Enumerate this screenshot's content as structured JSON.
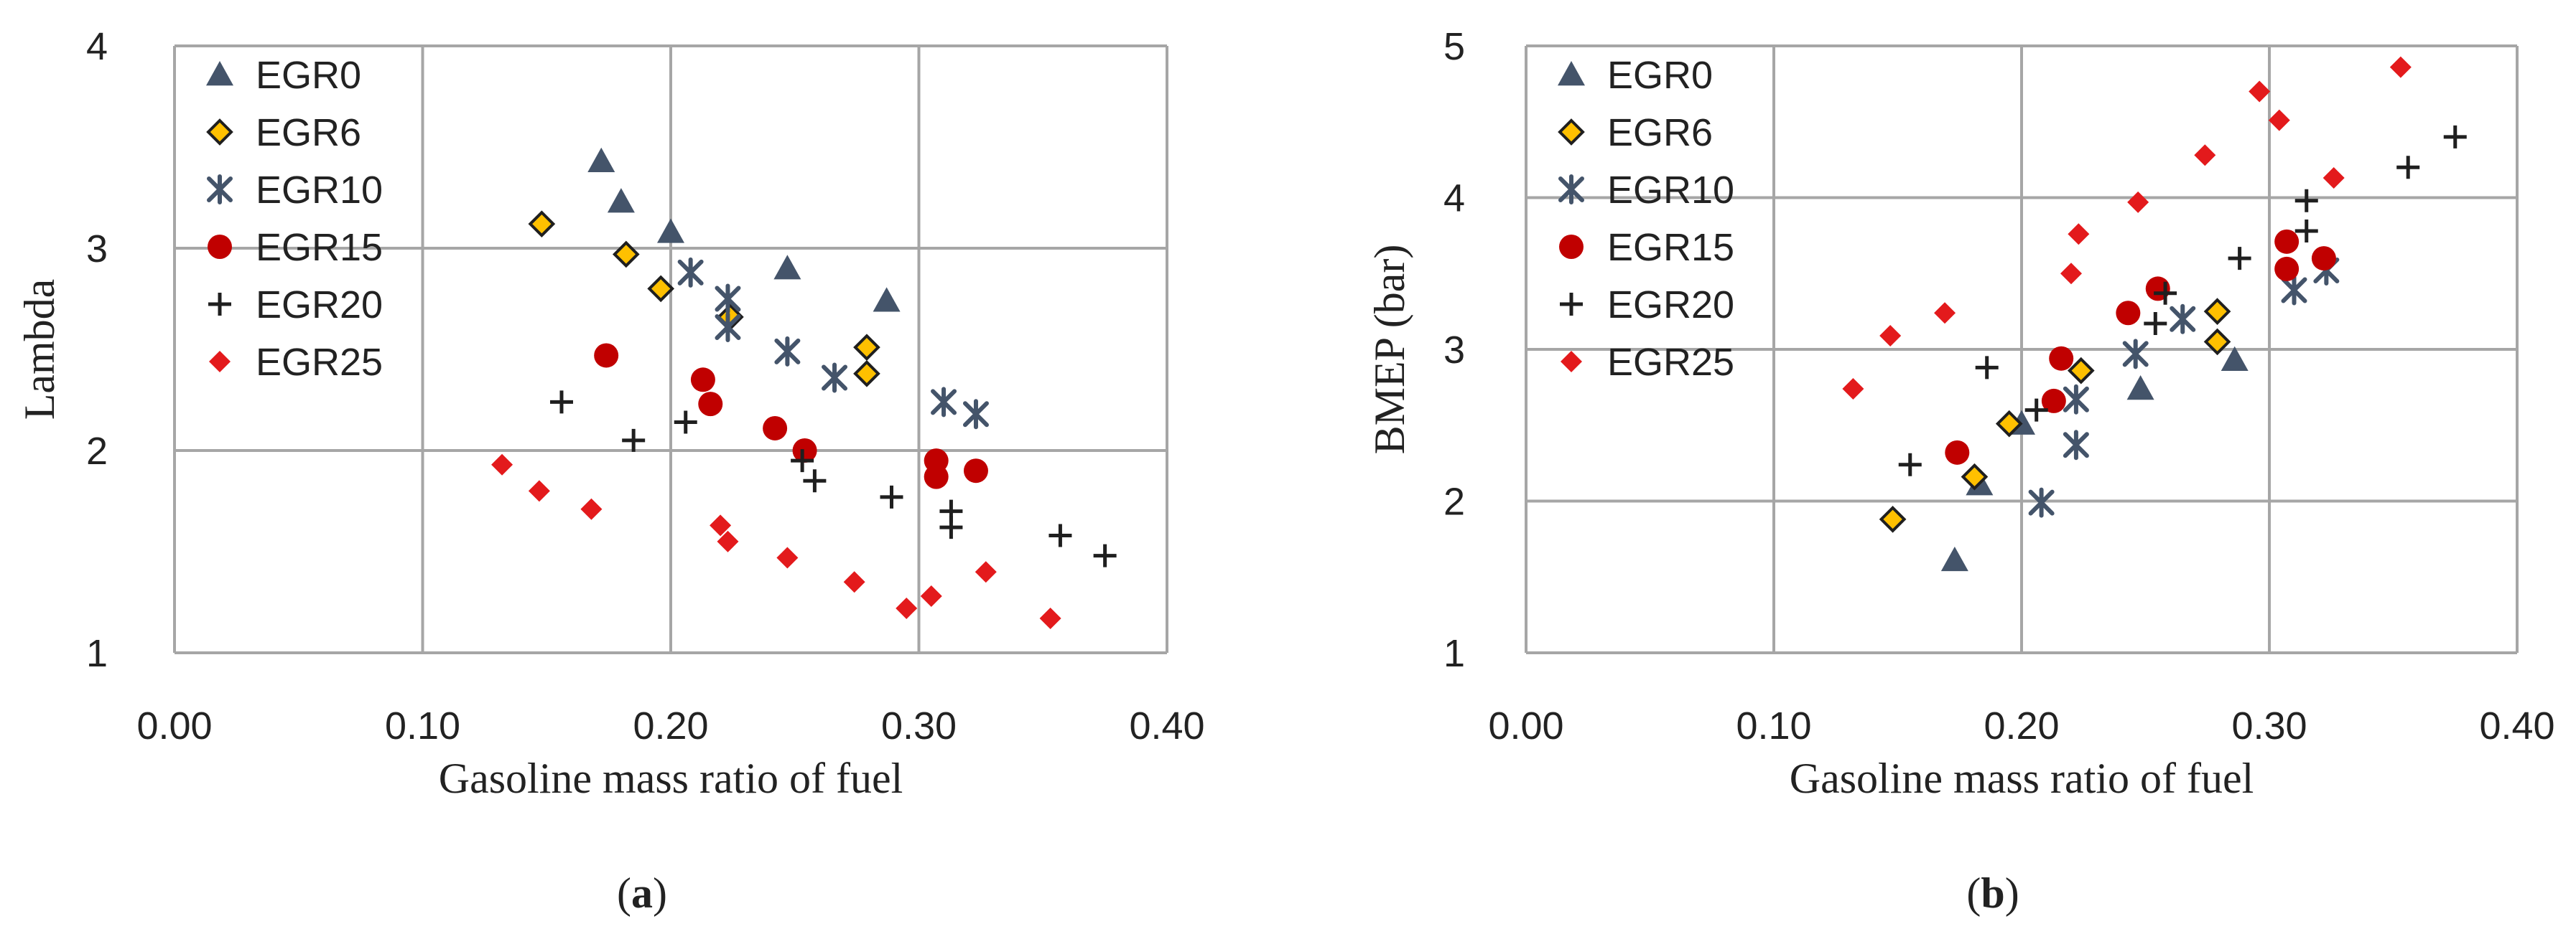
{
  "chart_data": [
    {
      "type": "scatter",
      "panel_label": "a",
      "xlabel": "Gasoline mass ratio of fuel",
      "ylabel": "Lambda",
      "xlim": [
        0,
        0.4
      ],
      "ylim": [
        1,
        4
      ],
      "xticks": [
        "0.00",
        "0.10",
        "0.20",
        "0.30",
        "0.40"
      ],
      "yticks": [
        "1",
        "2",
        "3",
        "4"
      ],
      "grid": true,
      "legend_position": "top-left",
      "series": [
        {
          "name": "EGR0",
          "marker": "triangle",
          "color": "#44546a",
          "points": [
            [
              0.172,
              3.43
            ],
            [
              0.18,
              3.23
            ],
            [
              0.2,
              3.08
            ],
            [
              0.247,
              2.9
            ],
            [
              0.287,
              2.74
            ]
          ]
        },
        {
          "name": "EGR6",
          "marker": "diamond",
          "color": "#ffc000",
          "points": [
            [
              0.148,
              3.12
            ],
            [
              0.182,
              2.97
            ],
            [
              0.196,
              2.8
            ],
            [
              0.224,
              2.66
            ],
            [
              0.279,
              2.51
            ],
            [
              0.279,
              2.38
            ]
          ]
        },
        {
          "name": "EGR10",
          "marker": "asterisk",
          "color": "#44546a",
          "points": [
            [
              0.208,
              2.88
            ],
            [
              0.223,
              2.75
            ],
            [
              0.223,
              2.61
            ],
            [
              0.247,
              2.49
            ],
            [
              0.266,
              2.36
            ],
            [
              0.31,
              2.24
            ],
            [
              0.323,
              2.18
            ]
          ]
        },
        {
          "name": "EGR15",
          "marker": "circle",
          "color": "#c00000",
          "points": [
            [
              0.174,
              2.47
            ],
            [
              0.213,
              2.35
            ],
            [
              0.216,
              2.23
            ],
            [
              0.242,
              2.11
            ],
            [
              0.254,
              2.0
            ],
            [
              0.307,
              1.95
            ],
            [
              0.307,
              1.87
            ],
            [
              0.323,
              1.9
            ]
          ]
        },
        {
          "name": "EGR20",
          "marker": "plus",
          "color": "#1f1f1f",
          "points": [
            [
              0.156,
              2.24
            ],
            [
              0.185,
              2.05
            ],
            [
              0.206,
              2.14
            ],
            [
              0.253,
              1.95
            ],
            [
              0.258,
              1.85
            ],
            [
              0.289,
              1.77
            ],
            [
              0.313,
              1.7
            ],
            [
              0.313,
              1.62
            ],
            [
              0.357,
              1.58
            ],
            [
              0.375,
              1.48
            ]
          ]
        },
        {
          "name": "EGR25",
          "marker": "diamond",
          "color": "#e31a1c",
          "points": [
            [
              0.132,
              1.93
            ],
            [
              0.147,
              1.8
            ],
            [
              0.168,
              1.71
            ],
            [
              0.22,
              1.63
            ],
            [
              0.223,
              1.55
            ],
            [
              0.247,
              1.47
            ],
            [
              0.274,
              1.35
            ],
            [
              0.295,
              1.22
            ],
            [
              0.305,
              1.28
            ],
            [
              0.327,
              1.4
            ],
            [
              0.353,
              1.17
            ]
          ]
        }
      ]
    },
    {
      "type": "scatter",
      "panel_label": "b",
      "xlabel": "Gasoline mass ratio of fuel",
      "ylabel": "BMEP (bar)",
      "xlim": [
        0,
        0.4
      ],
      "ylim": [
        1,
        5
      ],
      "xticks": [
        "0.00",
        "0.10",
        "0.20",
        "0.30",
        "0.40"
      ],
      "yticks": [
        "1",
        "2",
        "3",
        "4",
        "5"
      ],
      "grid": true,
      "legend_position": "top-left",
      "series": [
        {
          "name": "EGR0",
          "marker": "triangle",
          "color": "#44546a",
          "points": [
            [
              0.173,
              1.61
            ],
            [
              0.183,
              2.11
            ],
            [
              0.2,
              2.51
            ],
            [
              0.248,
              2.74
            ],
            [
              0.286,
              2.93
            ]
          ]
        },
        {
          "name": "EGR6",
          "marker": "diamond",
          "color": "#ffc000",
          "points": [
            [
              0.148,
              1.88
            ],
            [
              0.181,
              2.16
            ],
            [
              0.195,
              2.51
            ],
            [
              0.224,
              2.86
            ],
            [
              0.279,
              3.05
            ],
            [
              0.279,
              3.25
            ]
          ]
        },
        {
          "name": "EGR10",
          "marker": "asterisk",
          "color": "#44546a",
          "points": [
            [
              0.208,
              1.99
            ],
            [
              0.222,
              2.37
            ],
            [
              0.222,
              2.67
            ],
            [
              0.246,
              2.97
            ],
            [
              0.265,
              3.2
            ],
            [
              0.31,
              3.39
            ],
            [
              0.323,
              3.52
            ]
          ]
        },
        {
          "name": "EGR15",
          "marker": "circle",
          "color": "#c00000",
          "points": [
            [
              0.174,
              2.32
            ],
            [
              0.213,
              2.66
            ],
            [
              0.216,
              2.94
            ],
            [
              0.243,
              3.24
            ],
            [
              0.255,
              3.4
            ],
            [
              0.307,
              3.53
            ],
            [
              0.307,
              3.71
            ],
            [
              0.322,
              3.6
            ]
          ]
        },
        {
          "name": "EGR20",
          "marker": "plus",
          "color": "#1f1f1f",
          "points": [
            [
              0.155,
              2.24
            ],
            [
              0.186,
              2.88
            ],
            [
              0.206,
              2.6
            ],
            [
              0.254,
              3.17
            ],
            [
              0.258,
              3.37
            ],
            [
              0.288,
              3.6
            ],
            [
              0.315,
              3.78
            ],
            [
              0.315,
              3.98
            ],
            [
              0.356,
              4.2
            ],
            [
              0.375,
              4.4
            ]
          ]
        },
        {
          "name": "EGR25",
          "marker": "diamond",
          "color": "#e31a1c",
          "points": [
            [
              0.132,
              2.74
            ],
            [
              0.147,
              3.09
            ],
            [
              0.169,
              3.24
            ],
            [
              0.22,
              3.5
            ],
            [
              0.223,
              3.76
            ],
            [
              0.247,
              3.97
            ],
            [
              0.274,
              4.28
            ],
            [
              0.296,
              4.7
            ],
            [
              0.304,
              4.51
            ],
            [
              0.326,
              4.13
            ],
            [
              0.353,
              4.86
            ]
          ]
        }
      ]
    }
  ]
}
